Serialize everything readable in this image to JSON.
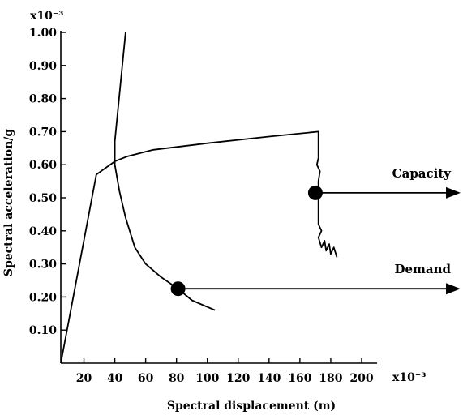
{
  "chart_data": {
    "type": "line",
    "xlabel": "Spectral displacement (m)",
    "ylabel": "Spectral acceleration/g",
    "x_multiplier": "x10⁻³",
    "y_multiplier": "x10⁻³",
    "xlim": [
      5,
      210
    ],
    "ylim": [
      0,
      1.0
    ],
    "x_ticks": [
      {
        "value": 20,
        "label": "20"
      },
      {
        "value": 40,
        "label": "40"
      },
      {
        "value": 60,
        "label": "60"
      },
      {
        "value": 80,
        "label": "80"
      },
      {
        "value": 100,
        "label": "100"
      },
      {
        "value": 120,
        "label": "120"
      },
      {
        "value": 140,
        "label": "140"
      },
      {
        "value": 160,
        "label": "160"
      },
      {
        "value": 180,
        "label": "180"
      },
      {
        "value": 200,
        "label": "200"
      }
    ],
    "y_ticks": [
      {
        "value": 0.1,
        "label": "0.10"
      },
      {
        "value": 0.2,
        "label": "0.20"
      },
      {
        "value": 0.3,
        "label": "0.30"
      },
      {
        "value": 0.4,
        "label": "0.40"
      },
      {
        "value": 0.5,
        "label": "0.50"
      },
      {
        "value": 0.6,
        "label": "0.60"
      },
      {
        "value": 0.7,
        "label": "0.70"
      },
      {
        "value": 0.8,
        "label": "0.80"
      },
      {
        "value": 0.9,
        "label": "0.90"
      },
      {
        "value": 1.0,
        "label": "1.00"
      }
    ],
    "grid": false,
    "series": [
      {
        "points": [
          [
            5,
            0.0
          ],
          [
            28,
            0.57
          ],
          [
            40,
            0.61
          ],
          [
            48,
            0.625
          ],
          [
            65,
            0.645
          ],
          [
            100,
            0.665
          ],
          [
            140,
            0.685
          ],
          [
            172,
            0.7
          ],
          [
            172,
            0.62
          ],
          [
            171,
            0.6
          ],
          [
            173,
            0.58
          ],
          [
            172,
            0.55
          ],
          [
            172,
            0.42
          ],
          [
            174,
            0.4
          ],
          [
            172,
            0.38
          ],
          [
            174,
            0.35
          ],
          [
            176,
            0.37
          ],
          [
            177,
            0.34
          ],
          [
            179,
            0.36
          ],
          [
            180,
            0.33
          ],
          [
            182,
            0.35
          ],
          [
            184,
            0.32
          ]
        ]
      },
      {
        "points": [
          [
            47,
            1.0
          ],
          [
            40,
            0.67
          ],
          [
            40,
            0.6
          ],
          [
            43,
            0.52
          ],
          [
            47,
            0.44
          ],
          [
            53,
            0.35
          ],
          [
            60,
            0.3
          ],
          [
            70,
            0.26
          ],
          [
            81,
            0.225
          ],
          [
            90,
            0.19
          ],
          [
            105,
            0.16
          ]
        ]
      }
    ],
    "markers": [
      {
        "x": 81,
        "y": 0.225
      },
      {
        "x": 170,
        "y": 0.515
      }
    ],
    "annotations": [
      {
        "text": "Capacity",
        "x": 170,
        "y": 0.515
      },
      {
        "text": "Demand",
        "x": 81,
        "y": 0.225
      }
    ]
  }
}
